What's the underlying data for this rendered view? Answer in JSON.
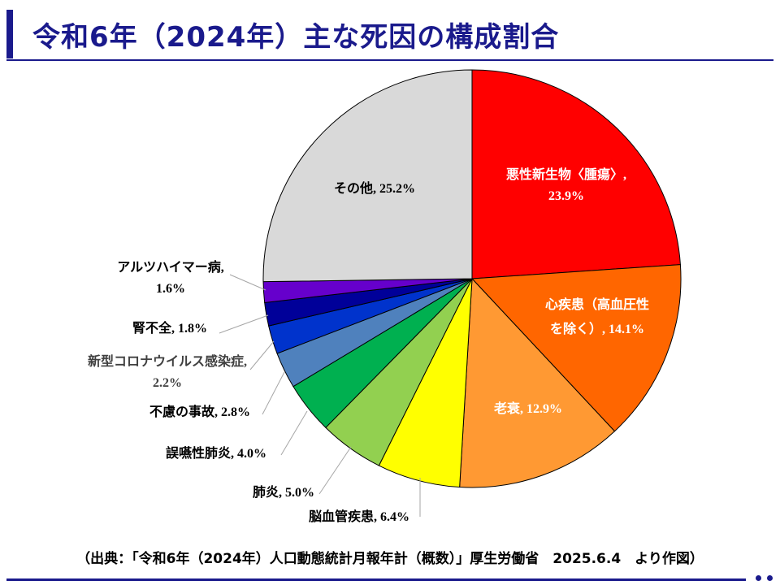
{
  "title": "令和6年（2024年）主な死因の構成割合",
  "source_note": "（出典：「令和6年（2024年）人口動態統計月報年計（概数）」厚生労働省　2025.6.4　より作図）",
  "chart_data": {
    "type": "pie",
    "title": "令和6年（2024年）主な死因の構成割合",
    "unit": "%",
    "start_angle": "12 o'clock",
    "direction": "clockwise",
    "slices": [
      {
        "label": "悪性新生物〈腫瘍〉",
        "value": 23.9,
        "color": "#ff0000",
        "label_color": "#ffffff",
        "label_position": "inside"
      },
      {
        "label": "心疾患（高血圧性を除く）",
        "value": 14.1,
        "color": "#ff6600",
        "label_color": "#ffffff",
        "label_position": "inside"
      },
      {
        "label": "老衰",
        "value": 12.9,
        "color": "#ff9933",
        "label_color": "#ffffff",
        "label_position": "inside"
      },
      {
        "label": "脳血管疾患",
        "value": 6.4,
        "color": "#ffff00",
        "label_color": "#000000",
        "label_position": "outside"
      },
      {
        "label": "肺炎",
        "value": 5.0,
        "color": "#92d050",
        "label_color": "#000000",
        "label_position": "outside"
      },
      {
        "label": "誤嚥性肺炎",
        "value": 4.0,
        "color": "#00b050",
        "label_color": "#000000",
        "label_position": "outside"
      },
      {
        "label": "不慮の事故",
        "value": 2.8,
        "color": "#4f81bd",
        "label_color": "#000000",
        "label_position": "outside"
      },
      {
        "label": "新型コロナウイルス感染症",
        "value": 2.2,
        "color": "#0033cc",
        "label_color": "#404040",
        "label_position": "outside"
      },
      {
        "label": "腎不全",
        "value": 1.8,
        "color": "#000099",
        "label_color": "#000000",
        "label_position": "outside"
      },
      {
        "label": "アルツハイマー病",
        "value": 1.6,
        "color": "#6600cc",
        "label_color": "#000000",
        "label_position": "outside"
      },
      {
        "label": "その他",
        "value": 25.2,
        "color": "#d9d9d9",
        "label_color": "#000000",
        "label_position": "inside"
      }
    ]
  },
  "theme": {
    "title_color": "#1a1a8c",
    "slice_border": "#000000",
    "leader_line_color": "#a6a6a6"
  }
}
